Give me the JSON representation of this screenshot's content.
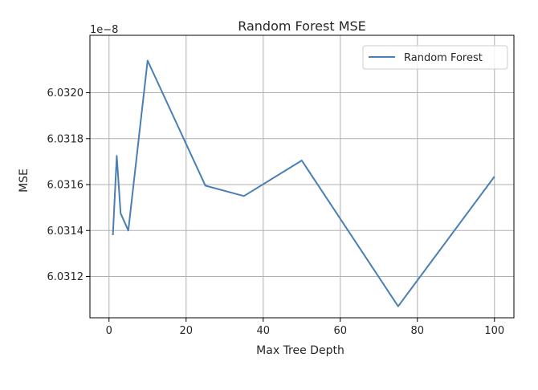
{
  "chart_data": {
    "type": "line",
    "title": "Random Forest MSE",
    "xlabel": "Max Tree Depth",
    "ylabel": "MSE",
    "offset_text": "1e−8",
    "xlim": [
      -4.95,
      105.05
    ],
    "ylim": [
      6.03102,
      6.03225
    ],
    "x_ticks": [
      0,
      20,
      40,
      60,
      80,
      100
    ],
    "x_tick_labels": [
      "0",
      "20",
      "40",
      "60",
      "80",
      "100"
    ],
    "y_ticks": [
      6.0312,
      6.0314,
      6.0316,
      6.0318,
      6.032
    ],
    "y_tick_labels": [
      "6.0312",
      "6.0314",
      "6.0316",
      "6.0318",
      "6.0320"
    ],
    "grid": true,
    "legend_position": "top-right",
    "series": [
      {
        "name": "Random Forest",
        "color": "#4a7fb5",
        "x": [
          1,
          2,
          3,
          5,
          10,
          25,
          35,
          50,
          75,
          100
        ],
        "y": [
          6.03138,
          6.031725,
          6.031475,
          6.0314,
          6.03214,
          6.031595,
          6.03155,
          6.031705,
          6.03107,
          6.031635
        ]
      }
    ]
  }
}
